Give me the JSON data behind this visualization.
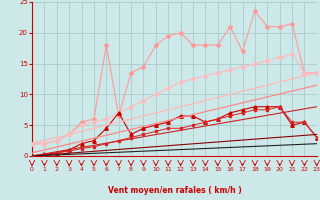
{
  "bg_color": "#cce8e8",
  "grid_color": "#aacccc",
  "xlabel": "Vent moyen/en rafales ( km/h )",
  "xlabel_color": "#cc0000",
  "tick_color": "#cc0000",
  "x_range": [
    0,
    23
  ],
  "y_range": [
    0,
    25
  ],
  "yticks": [
    0,
    5,
    10,
    15,
    20,
    25
  ],
  "xticks": [
    0,
    1,
    2,
    3,
    4,
    5,
    6,
    7,
    8,
    9,
    10,
    11,
    12,
    13,
    14,
    15,
    16,
    17,
    18,
    19,
    20,
    21,
    22,
    23
  ],
  "series": [
    {
      "x": [
        0,
        1,
        2,
        3,
        4,
        5,
        6,
        7,
        8,
        9,
        10,
        11,
        12,
        13,
        14,
        15,
        16,
        17,
        18,
        19,
        20,
        21,
        22,
        23
      ],
      "y": [
        2.0,
        2.0,
        2.5,
        3.5,
        5.5,
        6.0,
        18.0,
        6.5,
        13.5,
        14.5,
        18.0,
        19.5,
        20.0,
        18.0,
        18.0,
        18.0,
        21.0,
        17.0,
        23.5,
        21.0,
        21.0,
        21.5,
        13.5,
        13.5
      ],
      "color": "#ff9999",
      "marker": "D",
      "marker_size": 2,
      "linewidth": 0.8
    },
    {
      "x": [
        0,
        1,
        2,
        3,
        4,
        5,
        6,
        7,
        8,
        9,
        10,
        11,
        12,
        13,
        14,
        15,
        16,
        17,
        18,
        19,
        20,
        21,
        22,
        23
      ],
      "y": [
        2.0,
        2.0,
        2.5,
        3.5,
        5.0,
        5.5,
        6.0,
        7.0,
        8.0,
        9.0,
        10.0,
        11.0,
        12.0,
        12.5,
        13.0,
        13.5,
        14.0,
        14.5,
        15.0,
        15.5,
        16.0,
        16.5,
        13.5,
        13.5
      ],
      "color": "#ffbbbb",
      "marker": "D",
      "marker_size": 2,
      "linewidth": 0.8
    },
    {
      "x": [
        0,
        1,
        2,
        3,
        4,
        5,
        6,
        7,
        8,
        9,
        10,
        11,
        12,
        13,
        14,
        15,
        16,
        17,
        18,
        19,
        20,
        21,
        22,
        23
      ],
      "y": [
        0.0,
        0.3,
        0.5,
        1.0,
        2.0,
        2.5,
        4.5,
        7.0,
        3.5,
        4.5,
        5.0,
        5.5,
        6.5,
        6.5,
        5.5,
        6.0,
        7.0,
        7.5,
        8.0,
        8.0,
        8.0,
        5.0,
        5.5,
        3.0
      ],
      "color": "#cc0000",
      "marker": "^",
      "marker_size": 2.5,
      "linewidth": 0.8
    },
    {
      "x": [
        0,
        1,
        2,
        3,
        4,
        5,
        6,
        7,
        8,
        9,
        10,
        11,
        12,
        13,
        14,
        15,
        16,
        17,
        18,
        19,
        20,
        21,
        22,
        23
      ],
      "y": [
        0.0,
        0.2,
        0.5,
        0.8,
        1.2,
        1.5,
        2.0,
        2.5,
        3.0,
        3.5,
        4.0,
        4.5,
        4.5,
        5.0,
        5.5,
        6.0,
        6.5,
        7.0,
        7.5,
        7.5,
        8.0,
        5.5,
        5.5,
        3.0
      ],
      "color": "#dd2222",
      "marker": "s",
      "marker_size": 2,
      "linewidth": 0.7
    },
    {
      "x": [
        0,
        23
      ],
      "y": [
        2.0,
        13.5
      ],
      "color": "#ffbbbb",
      "marker": null,
      "linewidth": 1.0,
      "linestyle": "-"
    },
    {
      "x": [
        0,
        23
      ],
      "y": [
        0.5,
        11.5
      ],
      "color": "#ff8888",
      "marker": null,
      "linewidth": 0.9,
      "linestyle": "-"
    },
    {
      "x": [
        0,
        23
      ],
      "y": [
        0.0,
        8.0
      ],
      "color": "#cc2222",
      "marker": null,
      "linewidth": 0.8,
      "linestyle": "-"
    },
    {
      "x": [
        0,
        23
      ],
      "y": [
        0.0,
        3.5
      ],
      "color": "#880000",
      "marker": null,
      "linewidth": 0.8,
      "linestyle": "-"
    },
    {
      "x": [
        0,
        23
      ],
      "y": [
        0.0,
        2.0
      ],
      "color": "#222222",
      "marker": null,
      "linewidth": 0.8,
      "linestyle": "-"
    }
  ]
}
